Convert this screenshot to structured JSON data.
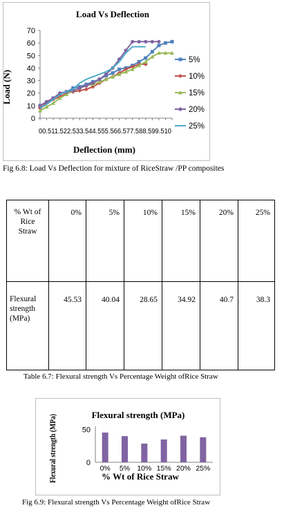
{
  "figure_1": {
    "caption": "Fig 6.8:  Load Vs Deflection for mixture of RiceStraw /PP composites"
  },
  "figure_2": {
    "caption": "Fig 6.9: Flexural strength Vs Percentage Weight ofRice Straw"
  },
  "table_6_7": {
    "caption": "Table 6.7: Flexural strength Vs Percentage Weight ofRice Straw",
    "header_label_lines": [
      "% Wt of",
      "Rice",
      "Straw"
    ],
    "header_values": [
      "0%",
      "5%",
      "10%",
      "15%",
      "20%",
      "25%"
    ],
    "row_label_lines": [
      "Flexural",
      "strength",
      "(MPa)"
    ],
    "row_values": [
      "45.53",
      "40.04",
      "28.65",
      "34.92",
      "40.7",
      "38.3"
    ]
  },
  "chart_data": [
    {
      "type": "line",
      "title": "Load Vs Deflection",
      "xlabel": "Deflection (mm)",
      "ylabel": "Load (N)",
      "ylim": [
        0,
        70
      ],
      "yticks": [
        "0",
        "10",
        "20",
        "30",
        "40",
        "50",
        "60",
        "70"
      ],
      "xtick_text": "00.511.522.533.544.555.566.577.588.599.510",
      "legend_position": "right",
      "grid": false,
      "x": [
        0,
        0.5,
        1,
        1.5,
        2,
        2.5,
        3,
        3.5,
        4,
        4.5,
        5,
        5.5,
        6,
        6.5,
        7,
        7.5,
        8,
        8.5,
        9,
        9.5,
        10
      ],
      "series": [
        {
          "name": "5%",
          "color": "#4f81bd",
          "marker": "square",
          "x": [
            0,
            0.5,
            1,
            1.5,
            2,
            2.5,
            3,
            3.5,
            4,
            4.5,
            5,
            5.5,
            6,
            6.5,
            7,
            7.5,
            8,
            8.5,
            9,
            9.5,
            10
          ],
          "values": [
            10,
            13,
            16,
            19,
            21,
            24,
            25,
            27,
            29,
            31,
            34,
            36,
            39,
            40,
            42,
            45,
            48,
            53,
            58,
            60,
            61
          ]
        },
        {
          "name": "10%",
          "color": "#c0504d",
          "marker": "diamond",
          "x": [
            0,
            0.5,
            1,
            1.5,
            2,
            2.5,
            3,
            3.5,
            4,
            4.5,
            5,
            5.5,
            6,
            6.5,
            7,
            7.5,
            8
          ],
          "values": [
            8,
            12,
            15,
            17,
            20,
            21,
            22,
            23,
            25,
            28,
            31,
            33,
            36,
            39,
            41,
            43,
            43
          ]
        },
        {
          "name": "15%",
          "color": "#9bbb59",
          "marker": "triangle",
          "x": [
            0,
            0.5,
            1,
            1.5,
            2,
            2.5,
            3,
            3.5,
            4,
            4.5,
            5,
            5.5,
            6,
            6.5,
            7,
            7.5,
            8,
            8.5,
            9,
            9.5,
            10
          ],
          "values": [
            6,
            9,
            12,
            16,
            19,
            22,
            24,
            26,
            27,
            29,
            31,
            33,
            35,
            37,
            39,
            42,
            45,
            49,
            52,
            52,
            52
          ]
        },
        {
          "name": "20%",
          "color": "#8064a2",
          "marker": "circle",
          "x": [
            0,
            0.5,
            1,
            1.5,
            2,
            2.5,
            3,
            3.5,
            4,
            4.5,
            5,
            5.5,
            6,
            6.5,
            7,
            7.5,
            8,
            8.5,
            9
          ],
          "values": [
            10,
            13,
            16,
            20,
            21,
            22,
            24,
            26,
            28,
            31,
            35,
            40,
            47,
            54,
            61,
            61,
            61,
            61,
            61
          ]
        },
        {
          "name": "25%",
          "color": "#4bacc6",
          "marker": "none",
          "x": [
            0,
            0.5,
            1,
            1.5,
            2,
            2.5,
            3,
            3.5,
            4,
            4.5,
            5,
            5.5,
            6,
            6.5,
            7,
            7.5,
            8
          ],
          "values": [
            8,
            11,
            15,
            19,
            21,
            23,
            28,
            31,
            33,
            35,
            37,
            40,
            45,
            52,
            57,
            57,
            57
          ]
        }
      ]
    },
    {
      "type": "bar",
      "title": "Flexural strength (MPa)",
      "xlabel": "% Wt of Rice Straw",
      "ylabel": "Flexural strength (MPa)",
      "categories": [
        "0%",
        "5%",
        "10%",
        "15%",
        "20%",
        "25%"
      ],
      "values": [
        45.53,
        40.04,
        28.65,
        34.92,
        40.7,
        38.3
      ],
      "yticks": [
        "0",
        "50"
      ],
      "ylim": [
        0,
        55
      ],
      "bar_color": "#8064a2"
    }
  ]
}
